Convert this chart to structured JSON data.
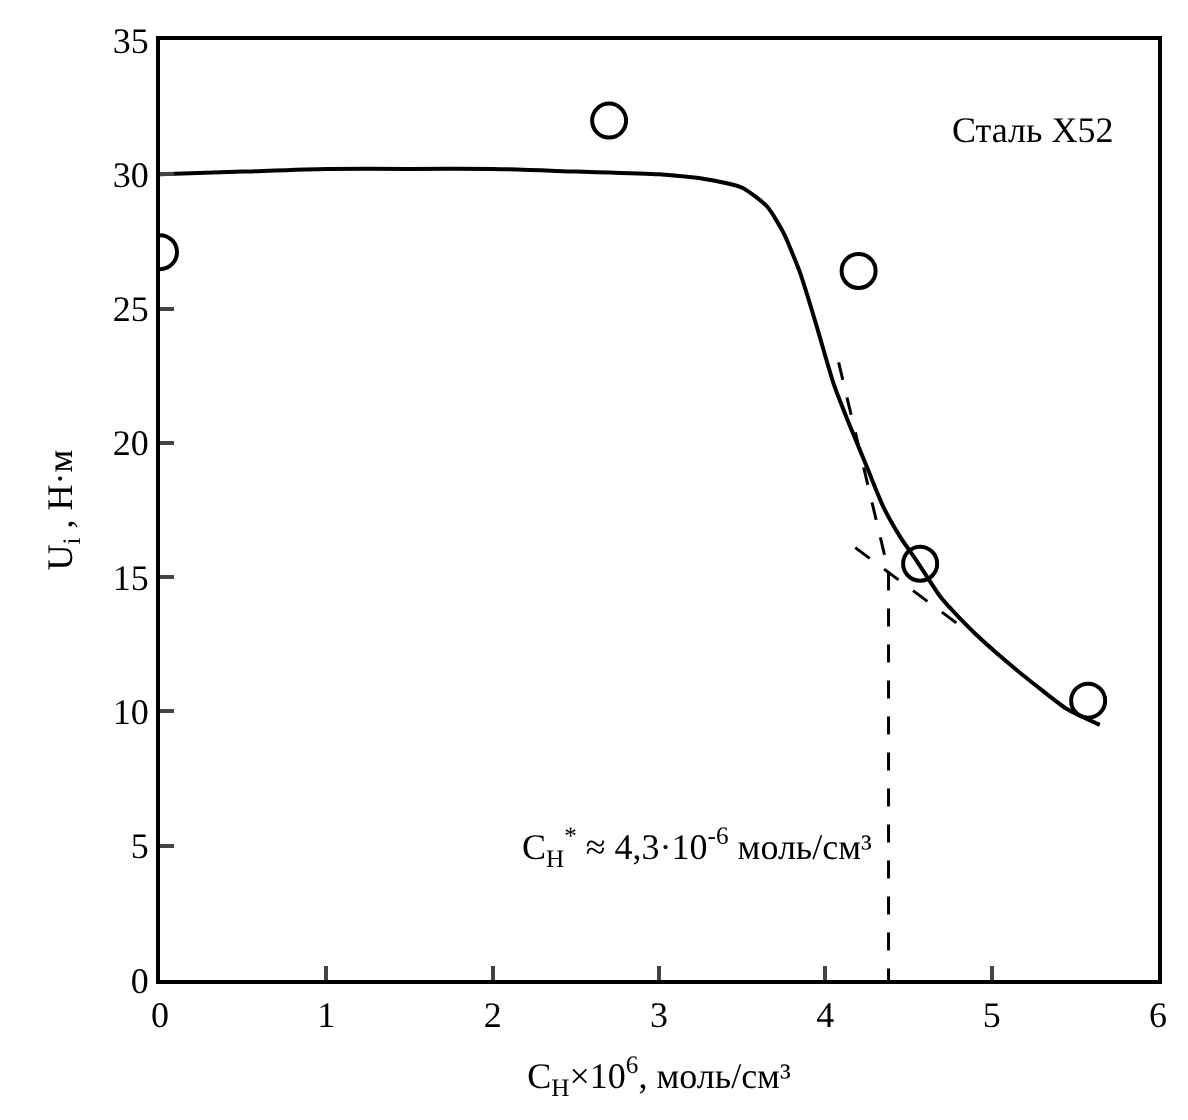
{
  "chart_data": {
    "type": "scatter",
    "xlabel": "C$_{Н}$×10$^{6}$, моль/см³",
    "ylabel": "U$_{i}$ , Н·м",
    "xlim": [
      0,
      6
    ],
    "xticks": [
      0,
      1,
      2,
      3,
      4,
      5,
      6
    ],
    "ylim": [
      0,
      35
    ],
    "yticks": [
      0,
      5,
      10,
      15,
      20,
      25,
      30,
      35
    ],
    "annotations": [
      "Сталь X52",
      "C$_{Н}$$^{*}$ ≈ 4,3·10$^{-6}$ моль/см³"
    ],
    "series": [
      {
        "color": "#000000",
        "marker": "circle",
        "x": [
          0,
          2.7,
          4.2,
          4.57,
          5.58
        ],
        "values": [
          27.1,
          32,
          26.4,
          15.5,
          10.4
        ]
      },
      {
        "type": "line",
        "color": "#000000",
        "line_style": "solid",
        "x": [
          0,
          0.5,
          1,
          1.5,
          2,
          2.5,
          3,
          3.3,
          3.5,
          3.65,
          3.75,
          3.85,
          3.95,
          4.05,
          4.15,
          4.25,
          4.35,
          4.45,
          4.55,
          4.7,
          4.9,
          5.1,
          5.3,
          5.45,
          5.65
        ],
        "values": [
          30,
          30.1,
          30.2,
          30.2,
          30.2,
          30.1,
          30,
          29.8,
          29.5,
          28.8,
          27.8,
          26.3,
          24.3,
          22.2,
          20.6,
          19.1,
          17.6,
          16.5,
          15.6,
          14.2,
          12.9,
          11.8,
          10.8,
          10.1,
          9.5
        ]
      },
      {
        "type": "line",
        "color": "#000000",
        "line_style": "dashed",
        "x": [
          4.08,
          4.38,
          4.38
        ],
        "values": [
          23,
          15.2,
          0
        ]
      },
      {
        "type": "line",
        "color": "#000000",
        "line_style": "dashed",
        "x": [
          4.18,
          4.83
        ],
        "values": [
          16.1,
          13.1
        ]
      }
    ]
  }
}
